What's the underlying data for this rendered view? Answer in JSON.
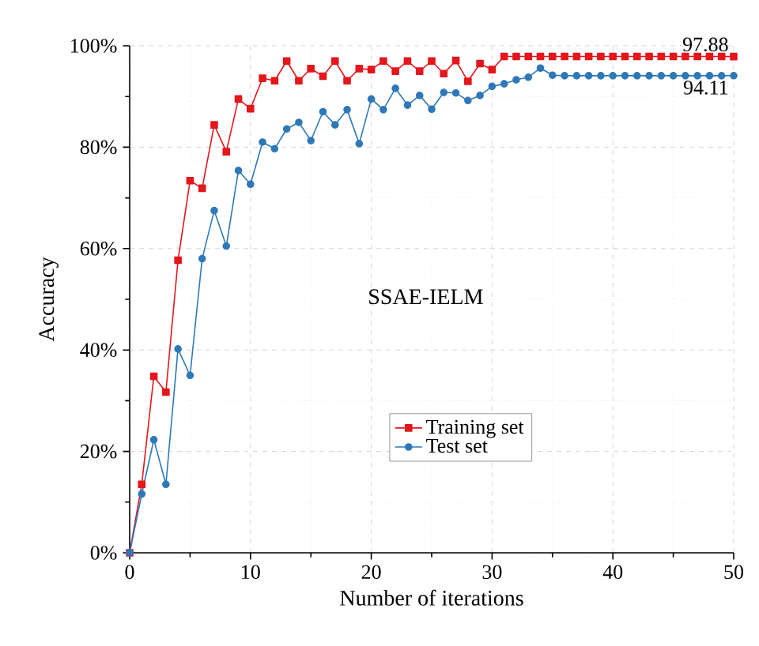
{
  "chart_data": {
    "type": "line",
    "xlabel": "Number of iterations",
    "ylabel": "Accuracy",
    "x": [
      0,
      1,
      2,
      3,
      4,
      5,
      6,
      7,
      8,
      9,
      10,
      11,
      12,
      13,
      14,
      15,
      16,
      17,
      18,
      19,
      20,
      21,
      22,
      23,
      24,
      25,
      26,
      27,
      28,
      29,
      30,
      31,
      32,
      33,
      34,
      35,
      36,
      37,
      38,
      39,
      40,
      41,
      42,
      43,
      44,
      45,
      46,
      47,
      48,
      49,
      50
    ],
    "series": [
      {
        "name": "Training set",
        "color": "#e3171c",
        "marker": "square",
        "values": [
          0,
          13.5,
          34.8,
          31.7,
          57.7,
          73.4,
          71.9,
          84.4,
          79.1,
          89.5,
          87.6,
          93.6,
          93.1,
          97.0,
          93.1,
          95.5,
          94.0,
          97.0,
          93.1,
          95.5,
          95.3,
          97.0,
          95.0,
          97.0,
          95.0,
          97.0,
          94.5,
          97.1,
          93.0,
          96.5,
          95.3,
          97.9,
          97.9,
          97.9,
          97.9,
          97.9,
          97.9,
          97.9,
          97.9,
          97.9,
          97.9,
          97.9,
          97.9,
          97.9,
          97.9,
          97.9,
          97.9,
          97.9,
          97.9,
          97.9,
          97.88
        ]
      },
      {
        "name": "Test set",
        "color": "#2e78b7",
        "marker": "circle",
        "values": [
          0,
          11.6,
          22.3,
          13.5,
          40.2,
          35.0,
          58.0,
          67.5,
          60.5,
          75.4,
          72.7,
          81.0,
          79.7,
          83.6,
          84.9,
          81.3,
          87.0,
          84.4,
          87.4,
          80.7,
          89.5,
          87.4,
          91.6,
          88.3,
          90.2,
          87.5,
          90.8,
          90.7,
          89.2,
          90.2,
          92.0,
          92.5,
          93.3,
          93.8,
          95.6,
          94.2,
          94.1,
          94.1,
          94.1,
          94.1,
          94.1,
          94.1,
          94.1,
          94.1,
          94.1,
          94.1,
          94.1,
          94.1,
          94.1,
          94.1,
          94.11
        ]
      }
    ],
    "xlim": [
      0,
      50
    ],
    "xticks": [
      0,
      10,
      20,
      30,
      40,
      50
    ],
    "ylim": [
      0,
      100
    ],
    "yticks": [
      {
        "value": 0,
        "label": "0%"
      },
      {
        "value": 20,
        "label": "20%"
      },
      {
        "value": 40,
        "label": "40%"
      },
      {
        "value": 60,
        "label": "60%"
      },
      {
        "value": 80,
        "label": "80%"
      },
      {
        "value": 100,
        "label": "100%"
      }
    ],
    "grid": true,
    "legend": "center",
    "annotations": [
      "SSAE-IELM",
      {
        "text": "97.88",
        "x": 50,
        "y": 97.88
      },
      {
        "text": "94.11",
        "x": 50,
        "y": 94.11
      }
    ]
  }
}
